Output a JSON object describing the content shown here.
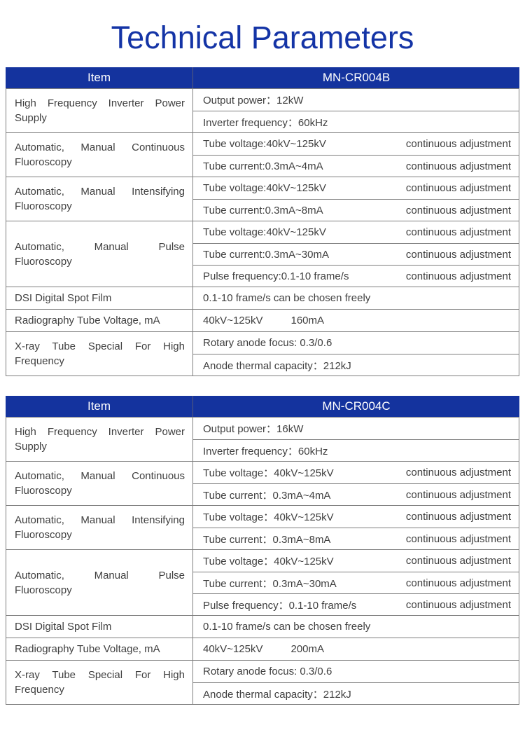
{
  "page_title": "Technical Parameters",
  "colors": {
    "header_bg": "#14339E",
    "title_text": "#1434A6",
    "border": "#7e7e7e",
    "body_text": "#3f3f3f",
    "header_text": "#ffffff"
  },
  "tables": [
    {
      "item_header": "Item",
      "model_header": "MN-CR004B",
      "rows": [
        {
          "item": "High Frequency Inverter Power Supply",
          "values": [
            {
              "text": "Output power：12kW"
            },
            {
              "text": "Inverter frequency：60kHz"
            }
          ]
        },
        {
          "item": "Automatic, Manual Continuous Fluoroscopy",
          "values": [
            {
              "text": "Tube voltage:40kV~125kV",
              "note": "continuous adjustment"
            },
            {
              "text": "Tube current:0.3mA~4mA",
              "note": "continuous adjustment"
            }
          ]
        },
        {
          "item": "Automatic, Manual Intensifying Fluoroscopy",
          "values": [
            {
              "text": "Tube voltage:40kV~125kV",
              "note": "continuous adjustment"
            },
            {
              "text": "Tube current:0.3mA~8mA",
              "note": "continuous adjustment"
            }
          ]
        },
        {
          "item": "Automatic, Manual Pulse Fluoroscopy",
          "values": [
            {
              "text": "Tube voltage:40kV~125kV",
              "note": "continuous adjustment"
            },
            {
              "text": "Tube current:0.3mA~30mA",
              "note": "continuous adjustment"
            },
            {
              "text": "Pulse frequency:0.1-10 frame/s",
              "note": "continuous adjustment"
            }
          ]
        },
        {
          "item": "DSI Digital Spot Film",
          "values": [
            {
              "text": "0.1-10 frame/s can be chosen freely"
            }
          ]
        },
        {
          "item": "Radiography Tube Voltage, mA",
          "values": [
            {
              "text": "40kV~125kV",
              "extra": "160mA"
            }
          ]
        },
        {
          "item": "X-ray Tube Special For High Frequency",
          "values": [
            {
              "text": "Rotary anode focus: 0.3/0.6"
            },
            {
              "text": "Anode thermal capacity：212kJ"
            }
          ]
        }
      ]
    },
    {
      "item_header": "Item",
      "model_header": "MN-CR004C",
      "rows": [
        {
          "item": "High Frequency Inverter Power Supply",
          "values": [
            {
              "text": "Output power：16kW"
            },
            {
              "text": "Inverter frequency：60kHz"
            }
          ]
        },
        {
          "item": "Automatic, Manual Continuous Fluoroscopy",
          "values": [
            {
              "text": "Tube voltage：40kV~125kV",
              "note": "continuous adjustment"
            },
            {
              "text": "Tube current：0.3mA~4mA",
              "note": "continuous adjustment"
            }
          ]
        },
        {
          "item": "Automatic, Manual Intensifying Fluoroscopy",
          "values": [
            {
              "text": "Tube voltage：40kV~125kV",
              "note": "continuous adjustment"
            },
            {
              "text": "Tube current：0.3mA~8mA",
              "note": "continuous adjustment"
            }
          ]
        },
        {
          "item": "Automatic, Manual Pulse Fluoroscopy",
          "values": [
            {
              "text": "Tube voltage：40kV~125kV",
              "note": "continuous adjustment"
            },
            {
              "text": "Tube current：0.3mA~30mA",
              "note": "continuous adjustment"
            },
            {
              "text": "Pulse frequency：0.1-10 frame/s",
              "note": "continuous adjustment"
            }
          ]
        },
        {
          "item": "DSI Digital Spot Film",
          "values": [
            {
              "text": "0.1-10 frame/s can be chosen freely"
            }
          ]
        },
        {
          "item": "Radiography Tube Voltage, mA",
          "values": [
            {
              "text": "40kV~125kV",
              "extra": "200mA"
            }
          ]
        },
        {
          "item": "X-ray Tube Special For High Frequency",
          "values": [
            {
              "text": "Rotary anode focus: 0.3/0.6"
            },
            {
              "text": "Anode thermal capacity：212kJ"
            }
          ]
        }
      ]
    }
  ]
}
